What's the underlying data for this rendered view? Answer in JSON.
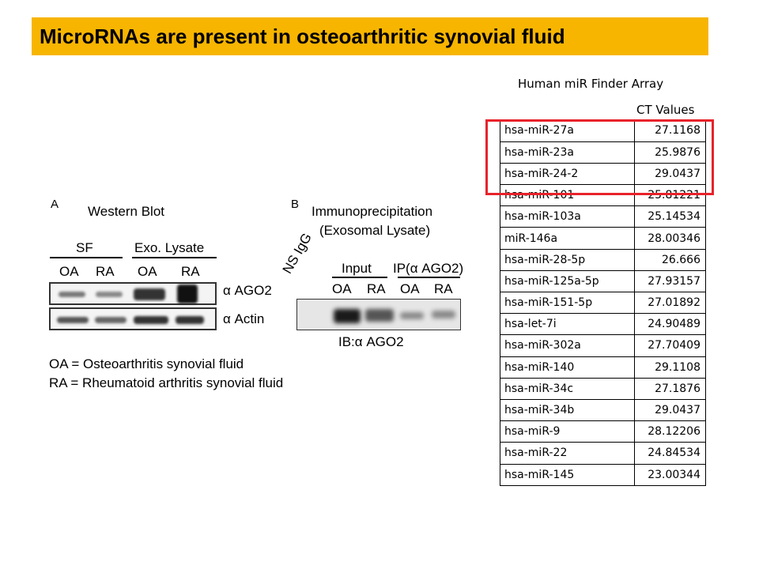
{
  "title": "MicroRNAs are present in osteoarthritic synovial fluid",
  "panel_a": {
    "letter": "A",
    "heading": "Western Blot",
    "group_sf": "SF",
    "group_exo": "Exo. Lysate",
    "lanes": [
      "OA",
      "RA",
      "OA",
      "RA"
    ],
    "row_labels": [
      "α AGO2",
      "α Actin"
    ]
  },
  "legend": {
    "oa": "OA = Osteoarthritis synovial fluid",
    "ra": "RA = Rheumatoid arthritis synovial fluid"
  },
  "panel_b": {
    "letter": "B",
    "heading_line1": "Immunoprecipitation",
    "heading_line2": "(Exosomal Lysate)",
    "ns_igg": "NS IgG",
    "group_input": "Input",
    "group_ip": "IP(α AGO2)",
    "lanes": [
      "OA",
      "RA",
      "OA",
      "RA"
    ],
    "ib_label": "IB:α AGO2"
  },
  "array": {
    "title": "Human miR Finder Array",
    "col_header": "CT Values",
    "rows": [
      {
        "name": "hsa-miR-27a",
        "ct": "27.1168"
      },
      {
        "name": "hsa-miR-23a",
        "ct": "25.9876"
      },
      {
        "name": "hsa-miR-24-2",
        "ct": "29.0437"
      },
      {
        "name": "hsa-miR-101",
        "ct": "25.81221"
      },
      {
        "name": "hsa-miR-103a",
        "ct": "25.14534"
      },
      {
        "name": "miR-146a",
        "ct": "28.00346"
      },
      {
        "name": "hsa-miR-28-5p",
        "ct": "26.666"
      },
      {
        "name": "hsa-miR-125a-5p",
        "ct": "27.93157"
      },
      {
        "name": "hsa-miR-151-5p",
        "ct": "27.01892"
      },
      {
        "name": "hsa-let-7i",
        "ct": "24.90489"
      },
      {
        "name": "hsa-miR-302a",
        "ct": "27.70409"
      },
      {
        "name": "hsa-miR-140",
        "ct": "29.1108"
      },
      {
        "name": "hsa-miR-34c",
        "ct": "27.1876"
      },
      {
        "name": "hsa-miR-34b",
        "ct": "29.0437"
      },
      {
        "name": "hsa-miR-9",
        "ct": "28.12206"
      },
      {
        "name": "hsa-miR-22",
        "ct": "24.84534"
      },
      {
        "name": "hsa-miR-145",
        "ct": "23.00344"
      }
    ],
    "highlight_color": "#e8222a"
  },
  "colors": {
    "title_bar": "#f7b500"
  }
}
